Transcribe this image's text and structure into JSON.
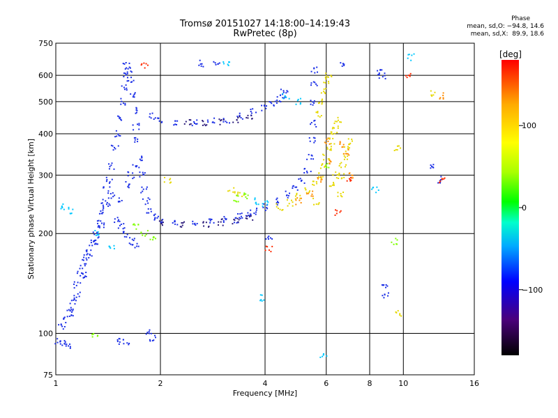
{
  "header": {
    "title_line1": "Tromsø 20151027 14:18:00–14:19:43",
    "title_line2": "RwPretec (8p)",
    "phase_title": "Phase",
    "phase_o": "mean, sd,O: −94.8, 14.6",
    "phase_x": "mean, sd,X:  89.9, 18.6"
  },
  "colorbar": {
    "unit": "[deg]",
    "ticks": [
      {
        "value": 100,
        "label": "100"
      },
      {
        "value": 0,
        "label": "0"
      },
      {
        "value": -100,
        "label": "−100"
      }
    ],
    "range": [
      -180,
      180
    ],
    "stops": [
      "#000000",
      "#4b007a",
      "#0000ff",
      "#00aaff",
      "#00ffcc",
      "#00ff00",
      "#aaff00",
      "#ffff00",
      "#ffaa00",
      "#ff0000"
    ]
  },
  "chart_data": {
    "type": "scatter",
    "xlabel": "Frequency [MHz]",
    "ylabel": "Stationary phase Virtual Height [km]",
    "xscale": "log",
    "yscale": "log",
    "xlim": [
      1,
      16
    ],
    "ylim": [
      75,
      750
    ],
    "xticks": [
      {
        "value": 1,
        "label": "1"
      },
      {
        "value": 2,
        "label": "2"
      },
      {
        "value": 4,
        "label": "4"
      },
      {
        "value": 6,
        "label": "6"
      },
      {
        "value": 8,
        "label": "8"
      },
      {
        "value": 10,
        "label": "10"
      },
      {
        "value": 16,
        "label": "16"
      }
    ],
    "yticks": [
      {
        "value": 75,
        "label": "75"
      },
      {
        "value": 100,
        "label": "100"
      },
      {
        "value": 200,
        "label": "200"
      },
      {
        "value": 300,
        "label": "300"
      },
      {
        "value": 400,
        "label": "400"
      },
      {
        "value": 500,
        "label": "500"
      },
      {
        "value": 600,
        "label": "600"
      },
      {
        "value": 750,
        "label": "750"
      }
    ],
    "grid": true,
    "series": [
      {
        "color": "#1a2ee6",
        "phase": -100,
        "points": [
          [
            1.02,
            95
          ],
          [
            1.05,
            93
          ],
          [
            1.08,
            92
          ],
          [
            1.04,
            105
          ],
          [
            1.06,
            110
          ],
          [
            1.1,
            118
          ],
          [
            1.12,
            125
          ],
          [
            1.15,
            140
          ],
          [
            1.18,
            150
          ],
          [
            1.2,
            160
          ],
          [
            1.22,
            170
          ],
          [
            1.25,
            180
          ],
          [
            1.28,
            190
          ],
          [
            1.3,
            200
          ],
          [
            1.32,
            215
          ],
          [
            1.35,
            230
          ],
          [
            1.38,
            250
          ],
          [
            1.4,
            270
          ],
          [
            1.42,
            290
          ],
          [
            1.45,
            320
          ],
          [
            1.48,
            360
          ],
          [
            1.5,
            400
          ],
          [
            1.52,
            450
          ],
          [
            1.55,
            500
          ],
          [
            1.57,
            550
          ],
          [
            1.58,
            600
          ],
          [
            1.6,
            640
          ],
          [
            1.62,
            620
          ],
          [
            1.64,
            580
          ],
          [
            1.66,
            520
          ],
          [
            1.68,
            470
          ],
          [
            1.7,
            420
          ],
          [
            1.72,
            380
          ],
          [
            1.75,
            340
          ],
          [
            1.78,
            300
          ],
          [
            1.8,
            270
          ],
          [
            1.82,
            250
          ],
          [
            1.85,
            235
          ],
          [
            1.9,
            225
          ],
          [
            2.0,
            220
          ],
          [
            2.2,
            216
          ],
          [
            2.5,
            215
          ],
          [
            2.8,
            217
          ],
          [
            3.1,
            220
          ],
          [
            3.4,
            226
          ],
          [
            3.7,
            233
          ],
          [
            4.0,
            240
          ],
          [
            4.3,
            250
          ],
          [
            4.6,
            262
          ],
          [
            4.9,
            275
          ],
          [
            5.1,
            290
          ],
          [
            5.3,
            310
          ],
          [
            5.4,
            340
          ],
          [
            5.45,
            380
          ],
          [
            5.5,
            430
          ],
          [
            5.5,
            500
          ],
          [
            5.52,
            560
          ],
          [
            5.55,
            620
          ],
          [
            1.9,
            450
          ],
          [
            2.0,
            440
          ],
          [
            2.2,
            435
          ],
          [
            2.5,
            433
          ],
          [
            2.8,
            435
          ],
          [
            3.1,
            440
          ],
          [
            3.4,
            450
          ],
          [
            3.7,
            465
          ],
          [
            4.0,
            480
          ],
          [
            4.2,
            490
          ],
          [
            4.4,
            505
          ],
          [
            4.5,
            520
          ],
          [
            4.55,
            540
          ],
          [
            1.55,
            250
          ],
          [
            1.6,
            280
          ],
          [
            1.65,
            300
          ],
          [
            1.7,
            320
          ],
          [
            1.4,
            240
          ],
          [
            1.45,
            260
          ],
          [
            1.35,
            210
          ],
          [
            1.3,
            190
          ],
          [
            1.25,
            170
          ],
          [
            1.2,
            150
          ],
          [
            1.15,
            130
          ],
          [
            1.1,
            115
          ],
          [
            1.5,
            220
          ],
          [
            1.55,
            210
          ],
          [
            1.6,
            200
          ],
          [
            1.65,
            190
          ],
          [
            1.7,
            185
          ],
          [
            2.6,
            650
          ],
          [
            2.9,
            660
          ],
          [
            8.6,
            610
          ],
          [
            8.7,
            600
          ],
          [
            6.6,
            640
          ],
          [
            8.8,
            140
          ],
          [
            8.9,
            130
          ],
          [
            12.2,
            320
          ],
          [
            12.8,
            290
          ],
          [
            4.1,
            192
          ],
          [
            3.3,
            220
          ],
          [
            3.6,
            230
          ],
          [
            1.5,
            95
          ],
          [
            1.6,
            94
          ],
          [
            1.85,
            100
          ],
          [
            1.9,
            97
          ]
        ]
      },
      {
        "color": "#2a1a7a",
        "phase": -140,
        "points": [
          [
            2.0,
            215
          ],
          [
            2.3,
            213
          ],
          [
            2.7,
            214
          ],
          [
            3.0,
            216
          ],
          [
            3.3,
            219
          ],
          [
            3.6,
            225
          ],
          [
            2.4,
            430
          ],
          [
            2.7,
            432
          ],
          [
            3.0,
            436
          ],
          [
            3.3,
            442
          ],
          [
            3.6,
            452
          ]
        ]
      },
      {
        "color": "#e6d800",
        "phase": 90,
        "points": [
          [
            4.4,
            240
          ],
          [
            4.7,
            248
          ],
          [
            5.0,
            258
          ],
          [
            5.3,
            268
          ],
          [
            5.6,
            282
          ],
          [
            5.8,
            300
          ],
          [
            5.9,
            320
          ],
          [
            6.0,
            340
          ],
          [
            6.1,
            360
          ],
          [
            6.2,
            380
          ],
          [
            6.3,
            400
          ],
          [
            6.4,
            420
          ],
          [
            6.5,
            440
          ],
          [
            6.6,
            300
          ],
          [
            6.7,
            320
          ],
          [
            6.8,
            340
          ],
          [
            6.9,
            360
          ],
          [
            7.0,
            380
          ],
          [
            5.7,
            460
          ],
          [
            5.8,
            500
          ],
          [
            5.9,
            540
          ],
          [
            6.0,
            580
          ],
          [
            6.1,
            600
          ],
          [
            5.6,
            250
          ],
          [
            6.2,
            280
          ],
          [
            6.4,
            300
          ],
          [
            6.6,
            260
          ],
          [
            3.2,
            270
          ],
          [
            3.4,
            265
          ],
          [
            2.1,
            290
          ],
          [
            9.7,
            115
          ],
          [
            9.6,
            360
          ],
          [
            12.1,
            530
          ]
        ]
      },
      {
        "color": "#ff8c00",
        "phase": 140,
        "points": [
          [
            5.0,
            250
          ],
          [
            5.4,
            265
          ],
          [
            5.8,
            290
          ],
          [
            6.2,
            330
          ],
          [
            6.6,
            370
          ],
          [
            7.0,
            300
          ],
          [
            6.9,
            350
          ],
          [
            6.0,
            380
          ],
          [
            12.9,
            520
          ]
        ]
      },
      {
        "color": "#00c8ff",
        "phase": -40,
        "points": [
          [
            3.8,
            250
          ],
          [
            4.0,
            245
          ],
          [
            4.6,
            520
          ],
          [
            5.0,
            500
          ],
          [
            1.05,
            240
          ],
          [
            1.1,
            235
          ],
          [
            1.3,
            200
          ],
          [
            1.45,
            180
          ],
          [
            8.3,
            270
          ],
          [
            5.9,
            85
          ],
          [
            3.9,
            128
          ],
          [
            10.5,
            680
          ],
          [
            3.1,
            645
          ]
        ]
      },
      {
        "color": "#7fff00",
        "phase": 60,
        "points": [
          [
            1.7,
            210
          ],
          [
            1.8,
            200
          ],
          [
            1.9,
            195
          ],
          [
            3.3,
            255
          ],
          [
            3.5,
            260
          ],
          [
            6.1,
            320
          ],
          [
            9.4,
            190
          ],
          [
            1.3,
            98
          ]
        ]
      },
      {
        "color": "#ff2a00",
        "phase": 170,
        "points": [
          [
            4.1,
            180
          ],
          [
            7.0,
            290
          ],
          [
            6.5,
            230
          ],
          [
            12.9,
            290
          ],
          [
            10.4,
            600
          ],
          [
            1.8,
            640
          ]
        ]
      }
    ]
  }
}
